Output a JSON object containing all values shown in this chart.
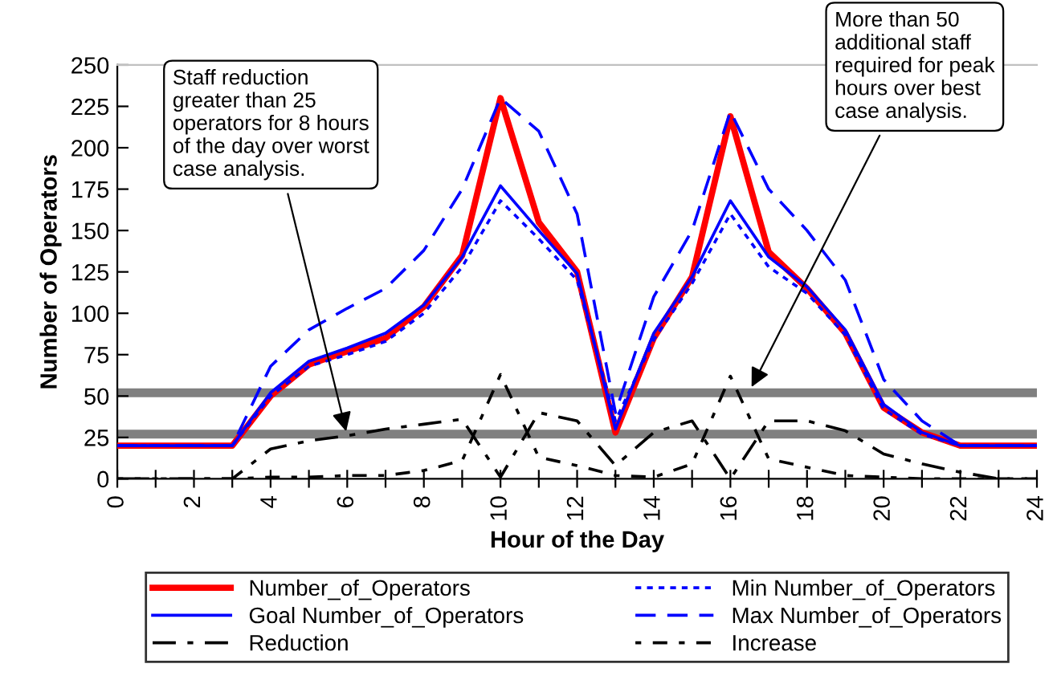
{
  "chart_data": {
    "type": "line",
    "xlabel": "Hour of the Day",
    "ylabel": "Number of Operators",
    "x": [
      0,
      1,
      2,
      3,
      4,
      5,
      6,
      7,
      8,
      9,
      10,
      11,
      12,
      13,
      14,
      15,
      16,
      17,
      18,
      19,
      20,
      21,
      22,
      23,
      24
    ],
    "series": [
      {
        "name": "Number_of_Operators",
        "color": "#ff0000",
        "line_style": "solid",
        "values": [
          20,
          20,
          20,
          20,
          50,
          69,
          77,
          85,
          104,
          135,
          230,
          155,
          125,
          28,
          85,
          122,
          219,
          137,
          115,
          88,
          43,
          28,
          20,
          20,
          20
        ]
      },
      {
        "name": "Min Number_of_Operators",
        "color": "#0000ff",
        "line_style": "dotted",
        "values": [
          20,
          20,
          20,
          20,
          50,
          68,
          75,
          83,
          100,
          128,
          168,
          145,
          120,
          35,
          84,
          118,
          160,
          128,
          112,
          87,
          42,
          27,
          20,
          20,
          20
        ]
      },
      {
        "name": "Goal Number_of_Operators",
        "color": "#0000ff",
        "line_style": "solid",
        "values": [
          20,
          20,
          20,
          20,
          52,
          71,
          79,
          88,
          105,
          134,
          177,
          150,
          124,
          30,
          88,
          122,
          168,
          134,
          116,
          90,
          45,
          28,
          20,
          20,
          20
        ]
      },
      {
        "name": "Max Number_of_Operators",
        "color": "#0000ff",
        "line_style": "dashed",
        "values": [
          20,
          20,
          20,
          20,
          68,
          90,
          103,
          115,
          138,
          175,
          230,
          210,
          160,
          40,
          110,
          150,
          222,
          175,
          150,
          120,
          60,
          35,
          20,
          20,
          20
        ]
      },
      {
        "name": "Reduction",
        "color": "#000000",
        "line_style": "dashdot",
        "values": [
          0,
          0,
          0,
          0,
          18,
          23,
          26,
          30,
          33,
          36,
          1,
          40,
          35,
          8,
          28,
          35,
          0,
          35,
          35,
          29,
          15,
          9,
          4,
          0,
          0
        ]
      },
      {
        "name": "Increase",
        "color": "#000000",
        "line_style": "dashdotted",
        "values": [
          0,
          0,
          0,
          0,
          1,
          1,
          2,
          2,
          5,
          11,
          63,
          13,
          8,
          2,
          1,
          9,
          62,
          12,
          7,
          2,
          1,
          0,
          0,
          0,
          0
        ]
      }
    ],
    "xlim": [
      0,
      24
    ],
    "xticks": [
      0,
      {
        "value": 1,
        "label": null
      },
      2,
      {
        "value": 3,
        "label": null
      },
      4,
      {
        "value": 5,
        "label": null
      },
      6,
      {
        "value": 7,
        "label": null
      },
      8,
      {
        "value": 9,
        "label": null
      },
      10,
      {
        "value": 11,
        "label": null
      },
      12,
      {
        "value": 13,
        "label": null
      },
      14,
      {
        "value": 15,
        "label": null
      },
      16,
      {
        "value": 17,
        "label": null
      },
      18,
      {
        "value": 19,
        "label": null
      },
      20,
      {
        "value": 21,
        "label": null
      },
      22,
      {
        "value": 23,
        "label": null
      },
      24
    ],
    "ylim": [
      0,
      250
    ],
    "yticks": [
      0,
      25,
      50,
      75,
      100,
      125,
      150,
      175,
      200,
      225,
      250
    ],
    "ref_lines": [
      {
        "axis": "y",
        "value": 52,
        "color": "#808080"
      },
      {
        "axis": "y",
        "value": 27,
        "color": "#808080"
      }
    ],
    "annotations": [
      {
        "text": "Staff reduction\ngreater than 25\noperators for 8 hours\nof the day over worst\ncase analysis.",
        "x": 6,
        "y": 26
      },
      {
        "text": "More than 50\nadditional staff\nrequired for peak\nhours over best\ncase analysis.",
        "x": 16.5,
        "y": 53
      }
    ],
    "legend": "bottom",
    "grid": false,
    "marker": "none"
  }
}
